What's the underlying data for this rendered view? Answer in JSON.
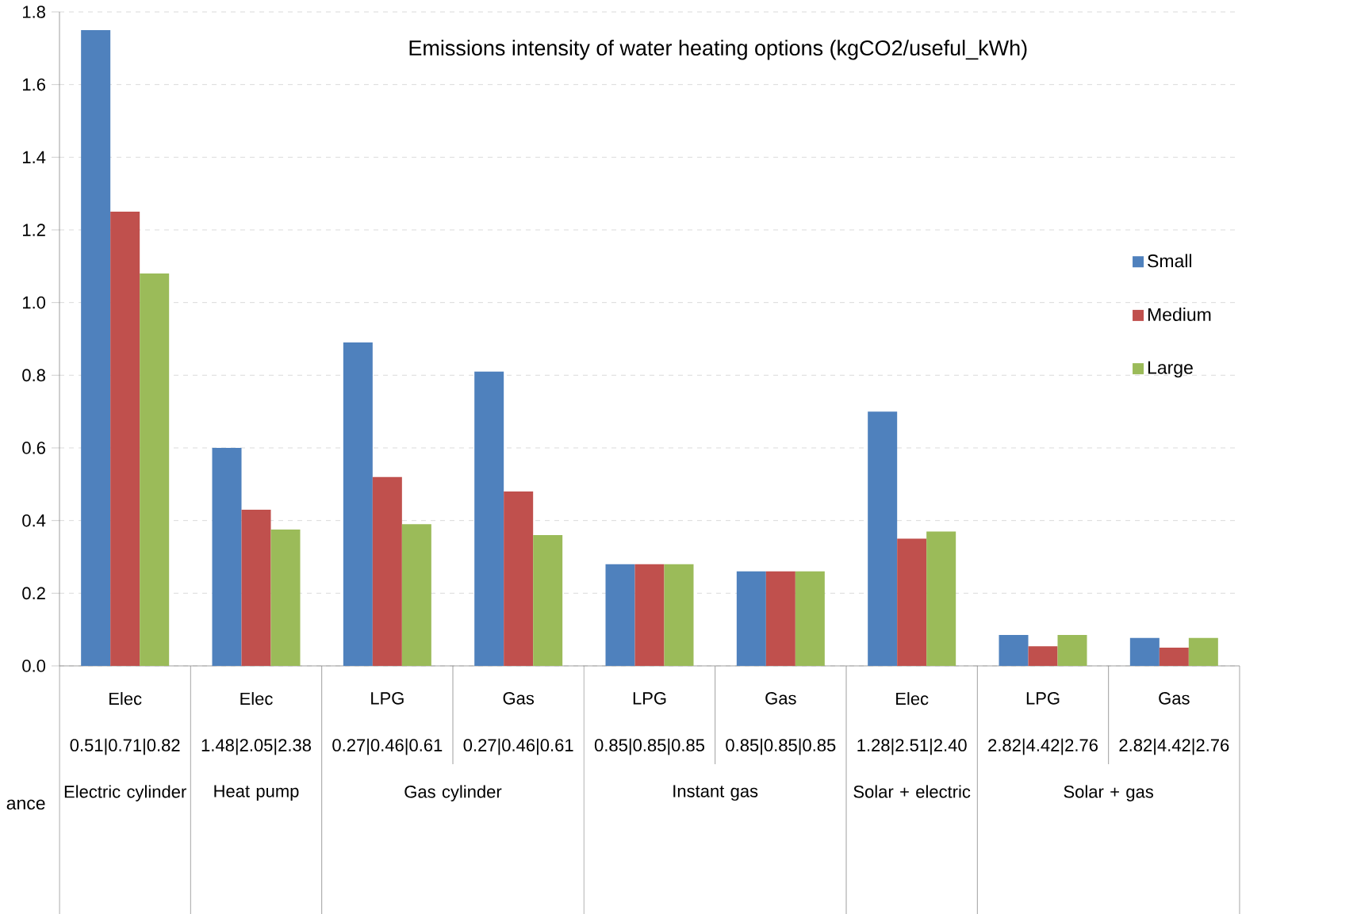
{
  "chart_data": {
    "type": "bar",
    "title": "Emissions intensity of water heating options (kgCO2/useful_kWh)",
    "categories": [
      "Elec",
      "Elec",
      "LPG",
      "Gas",
      "LPG",
      "Gas",
      "Elec",
      "LPG",
      "Gas"
    ],
    "series": [
      {
        "name": "Small",
        "color": "#4f81bd",
        "values": [
          1.75,
          0.6,
          0.89,
          0.81,
          0.28,
          0.26,
          0.7,
          0.085,
          0.077
        ]
      },
      {
        "name": "Medium",
        "color": "#c0504d",
        "values": [
          1.25,
          0.43,
          0.52,
          0.48,
          0.28,
          0.26,
          0.35,
          0.054,
          0.05
        ]
      },
      {
        "name": "Large",
        "color": "#9bbb59",
        "values": [
          1.08,
          0.375,
          0.39,
          0.36,
          0.28,
          0.26,
          0.37,
          0.085,
          0.077
        ]
      }
    ],
    "annotations": [
      "0.51|0.71|0.82",
      "1.48|2.05|2.38",
      "0.27|0.46|0.61",
      "0.27|0.46|0.61",
      "0.85|0.85|0.85",
      "0.85|0.85|0.85",
      "1.28|2.51|2.40",
      "2.82|4.42|2.76",
      "2.82|4.42|2.76",
      "Electric cylinder",
      "Heat pump",
      "Gas cylinder",
      "Instant gas",
      "Solar + electric",
      "Solar + gas",
      "ance"
    ],
    "ylim": [
      0,
      1.8
    ],
    "yticks": [
      {
        "value": 0,
        "label": "0.0"
      },
      0.2,
      0.4,
      0.6,
      0.8,
      {
        "value": 1,
        "label": "1.0"
      },
      1.2,
      1.4,
      1.6,
      1.8
    ],
    "grid": "y",
    "legend": "right"
  }
}
